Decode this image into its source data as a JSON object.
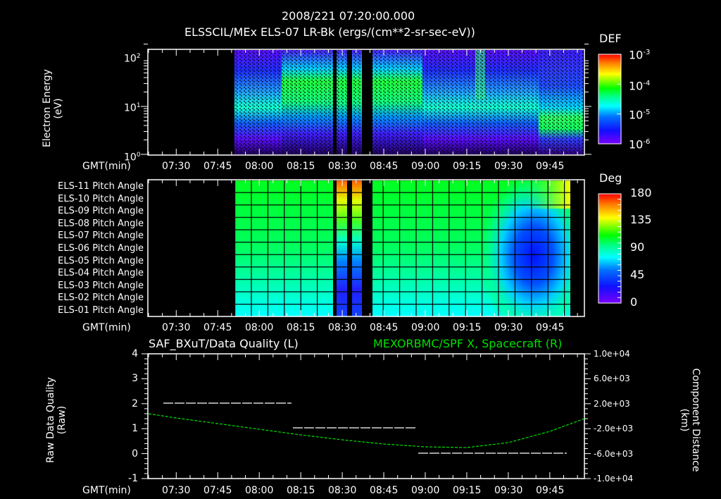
{
  "header": {
    "datetime": "2008/221 07:20:00.000",
    "title": "ELSSCIL/MEx ELS-07 LR-Bk  (ergs/(cm**2-sr-sec-eV))"
  },
  "time_axis": {
    "label": "GMT(min)",
    "ticks": [
      "07:30",
      "07:45",
      "08:00",
      "08:15",
      "08:30",
      "08:45",
      "09:00",
      "09:15",
      "09:30",
      "09:45"
    ]
  },
  "panel1": {
    "ylabel_line1": "Electron Energy",
    "ylabel_line2": "(eV)",
    "yticks": [
      {
        "base": "10",
        "exp": "2"
      },
      {
        "base": "10",
        "exp": "1"
      },
      {
        "base": "10",
        "exp": "0"
      }
    ],
    "colorbar": {
      "title": "DEF",
      "ticks": [
        {
          "base": "10",
          "exp": "-3"
        },
        {
          "base": "10",
          "exp": "-4"
        },
        {
          "base": "10",
          "exp": "-5"
        },
        {
          "base": "10",
          "exp": "-6"
        }
      ]
    }
  },
  "panel2": {
    "rows": [
      "ELS-11 Pitch Angle",
      "ELS-10 Pitch Angle",
      "ELS-09 Pitch Angle",
      "ELS-08 Pitch Angle",
      "ELS-07 Pitch Angle",
      "ELS-06 Pitch Angle",
      "ELS-05 Pitch Angle",
      "ELS-04 Pitch Angle",
      "ELS-03 Pitch Angle",
      "ELS-02 Pitch Angle",
      "ELS-01 Pitch Angle"
    ],
    "colorbar": {
      "title": "Deg",
      "ticks": [
        "180",
        "135",
        "90",
        "45",
        "0"
      ]
    }
  },
  "panel3": {
    "left_title": "SAF_BXuT/Data Quality (L)",
    "right_title": "MEXORBMC/SPF X, Spacecraft (R)",
    "ylabel_left_line1": "Raw Data Quality",
    "ylabel_left_line2": "(Raw)",
    "ylabel_right_line1": "Component Distance",
    "ylabel_right_line2": "(km)",
    "yticks_left": [
      "4",
      "3",
      "2",
      "1",
      "0",
      "-1"
    ],
    "yticks_right": [
      "1.0e+04",
      "6.0e+03",
      "2.0e+03",
      "-2.0e+03",
      "-6.0e+03",
      "-1.0e+04"
    ]
  },
  "colors": {
    "background": "#000000",
    "axes": "#ffffff",
    "spacecraft_trace": "#00e000",
    "quality_trace": "#ffffff"
  },
  "chart_data": [
    {
      "type": "heatmap",
      "title": "ELSSCIL/MEx ELS-07 LR-Bk (ergs/(cm**2-sr-sec-eV))",
      "xlabel": "GMT(min)",
      "ylabel": "Electron Energy (eV)",
      "x_range": [
        "07:20",
        "09:58"
      ],
      "y_scale": "log",
      "ylim": [
        1,
        200
      ],
      "colorbar": {
        "label": "DEF",
        "scale": "log",
        "range": [
          1e-06,
          0.001
        ]
      },
      "data_gaps": [
        [
          "07:20",
          "07:51"
        ],
        [
          "08:27",
          "08:28"
        ],
        [
          "08:32",
          "08:33"
        ],
        [
          "08:36",
          "08:39"
        ],
        [
          "09:57",
          "09:58"
        ]
      ],
      "features": [
        {
          "time": "07:51-08:05",
          "energy_peak_eV": 7,
          "level": "1e-5"
        },
        {
          "time": "08:07-08:25",
          "energy_peak_eV": 30,
          "level": "1e-4"
        },
        {
          "time": "08:40-08:58",
          "energy_peak_eV": 25,
          "level": "5e-5"
        },
        {
          "time": "09:20-09:22",
          "energy_peak_eV": 100,
          "level": "1e-4"
        },
        {
          "time": "09:45-09:57",
          "energy_peak_eV": 7,
          "level": "1e-4"
        }
      ]
    },
    {
      "type": "heatmap",
      "title": "Pitch Angle",
      "xlabel": "GMT(min)",
      "categories": [
        "ELS-11",
        "ELS-10",
        "ELS-09",
        "ELS-08",
        "ELS-07",
        "ELS-06",
        "ELS-05",
        "ELS-04",
        "ELS-03",
        "ELS-02",
        "ELS-01"
      ],
      "colorbar": {
        "label": "Deg",
        "range": [
          0,
          180
        ],
        "ticks": [
          0,
          45,
          90,
          135,
          180
        ]
      },
      "summary": {
        "07:51-09:22": [
          95,
          100,
          100,
          100,
          100,
          95,
          85,
          80,
          75,
          70,
          65
        ],
        "08:29-08:37": [
          165,
          150,
          130,
          100,
          90,
          70,
          40,
          30,
          30,
          30,
          30
        ],
        "09:30-09:55": [
          130,
          110,
          60,
          45,
          35,
          25,
          20,
          20,
          30,
          45,
          60
        ]
      }
    },
    {
      "type": "line",
      "title": "SAF_BXuT/Data Quality (L) ; MEXORBMC/SPF X, Spacecraft (R)",
      "xlabel": "GMT(min)",
      "series": [
        {
          "name": "Data Quality (L)",
          "axis": "left",
          "ylim": [
            -1,
            4
          ],
          "points": [
            [
              "07:26",
              2
            ],
            [
              "08:12",
              2
            ],
            [
              "08:13",
              1
            ],
            [
              "08:58",
              1
            ],
            [
              "08:59",
              0
            ],
            [
              "09:52",
              0
            ]
          ]
        },
        {
          "name": "SPF X Spacecraft (R, km)",
          "axis": "right",
          "ylim": [
            -10000,
            10000
          ],
          "points": [
            [
              "07:20",
              0
            ],
            [
              "07:45",
              -1200
            ],
            [
              "08:00",
              -2000
            ],
            [
              "08:15",
              -2800
            ],
            [
              "08:30",
              -3500
            ],
            [
              "08:45",
              -4000
            ],
            [
              "09:00",
              -4400
            ],
            [
              "09:15",
              -4400
            ],
            [
              "09:30",
              -3400
            ],
            [
              "09:45",
              -1500
            ],
            [
              "09:58",
              500
            ]
          ]
        }
      ]
    }
  ]
}
